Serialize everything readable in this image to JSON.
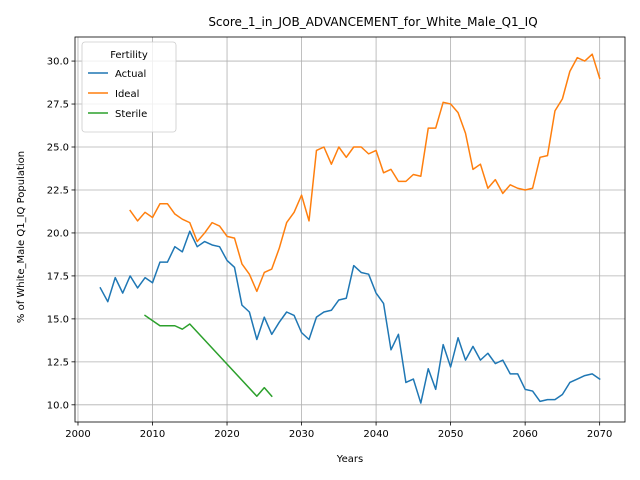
{
  "chart_data": {
    "type": "line",
    "title": "Score_1_in_JOB_ADVANCEMENT_for_White_Male_Q1_IQ",
    "xlabel": "Years",
    "ylabel": "% of White_Male Q1_IQ Population",
    "xlim": [
      1999.6,
      2073.4
    ],
    "ylim": [
      9.0,
      31.4
    ],
    "xticks": [
      2000,
      2010,
      2020,
      2030,
      2040,
      2050,
      2060,
      2070
    ],
    "yticks": [
      10.0,
      12.5,
      15.0,
      17.5,
      20.0,
      22.5,
      25.0,
      27.5,
      30.0
    ],
    "ytick_labels": [
      "10.0",
      "12.5",
      "15.0",
      "17.5",
      "20.0",
      "22.5",
      "25.0",
      "27.5",
      "30.0"
    ],
    "grid": true,
    "legend": {
      "title": "Fertility",
      "position": "top-left"
    },
    "series": [
      {
        "name": "Actual",
        "color": "#1f77b4",
        "x": [
          2003,
          2004,
          2005,
          2006,
          2007,
          2008,
          2009,
          2010,
          2011,
          2012,
          2013,
          2014,
          2015,
          2016,
          2017,
          2018,
          2019,
          2020,
          2021,
          2022,
          2023,
          2024,
          2025,
          2026,
          2027,
          2028,
          2029,
          2030,
          2031,
          2032,
          2033,
          2034,
          2035,
          2036,
          2037,
          2038,
          2039,
          2040,
          2041,
          2042,
          2043,
          2044,
          2045,
          2046,
          2047,
          2048,
          2049,
          2050,
          2051,
          2052,
          2053,
          2054,
          2055,
          2056,
          2057,
          2058,
          2059,
          2060,
          2061,
          2062,
          2063,
          2064,
          2065,
          2066,
          2067,
          2068,
          2069,
          2070
        ],
        "y": [
          16.8,
          16.0,
          17.4,
          16.5,
          17.5,
          16.8,
          17.4,
          17.1,
          18.3,
          18.3,
          19.2,
          18.9,
          20.1,
          19.2,
          19.5,
          19.3,
          19.2,
          18.4,
          18.0,
          15.8,
          15.4,
          13.8,
          15.1,
          14.1,
          14.8,
          15.4,
          15.2,
          14.2,
          13.8,
          15.1,
          15.4,
          15.5,
          16.1,
          16.2,
          18.1,
          17.7,
          17.6,
          16.5,
          15.9,
          13.2,
          14.1,
          11.3,
          11.5,
          10.1,
          12.1,
          10.9,
          13.5,
          12.2,
          13.9,
          12.6,
          13.4,
          12.6,
          13.0,
          12.4,
          12.6,
          11.8,
          11.8,
          10.9,
          10.8,
          10.2,
          10.3,
          10.3,
          10.6,
          11.3,
          11.5,
          11.7,
          11.8,
          11.5
        ]
      },
      {
        "name": "Ideal",
        "color": "#ff7f0e",
        "x": [
          2007,
          2008,
          2009,
          2010,
          2011,
          2012,
          2013,
          2014,
          2015,
          2016,
          2017,
          2018,
          2019,
          2020,
          2021,
          2022,
          2023,
          2024,
          2025,
          2026,
          2027,
          2028,
          2029,
          2030,
          2031,
          2032,
          2033,
          2034,
          2035,
          2036,
          2037,
          2038,
          2039,
          2040,
          2041,
          2042,
          2043,
          2044,
          2045,
          2046,
          2047,
          2048,
          2049,
          2050,
          2051,
          2052,
          2053,
          2054,
          2055,
          2056,
          2057,
          2058,
          2059,
          2060,
          2061,
          2062,
          2063,
          2064,
          2065,
          2066,
          2067,
          2068,
          2069,
          2070
        ],
        "y": [
          21.3,
          20.7,
          21.2,
          20.9,
          21.7,
          21.7,
          21.1,
          20.8,
          20.6,
          19.5,
          20.0,
          20.6,
          20.4,
          19.8,
          19.7,
          18.2,
          17.6,
          16.6,
          17.7,
          17.9,
          19.1,
          20.6,
          21.2,
          22.2,
          20.7,
          24.8,
          25.0,
          24.0,
          25.0,
          24.4,
          25.0,
          25.0,
          24.6,
          24.8,
          23.5,
          23.7,
          23.0,
          23.0,
          23.4,
          23.3,
          26.1,
          26.1,
          27.6,
          27.5,
          27.0,
          25.8,
          23.7,
          24.0,
          22.6,
          23.1,
          22.3,
          22.8,
          22.6,
          22.5,
          22.6,
          24.4,
          24.5,
          27.1,
          27.8,
          29.4,
          30.2,
          30.0,
          30.4,
          29.0
        ]
      },
      {
        "name": "Sterile",
        "color": "#2ca02c",
        "x": [
          2009,
          2010,
          2011,
          2012,
          2013,
          2014,
          2015,
          2024,
          2025,
          2026
        ],
        "y": [
          15.2,
          14.9,
          14.6,
          14.6,
          14.6,
          14.4,
          14.7,
          10.5,
          11.0,
          10.5
        ]
      }
    ]
  }
}
